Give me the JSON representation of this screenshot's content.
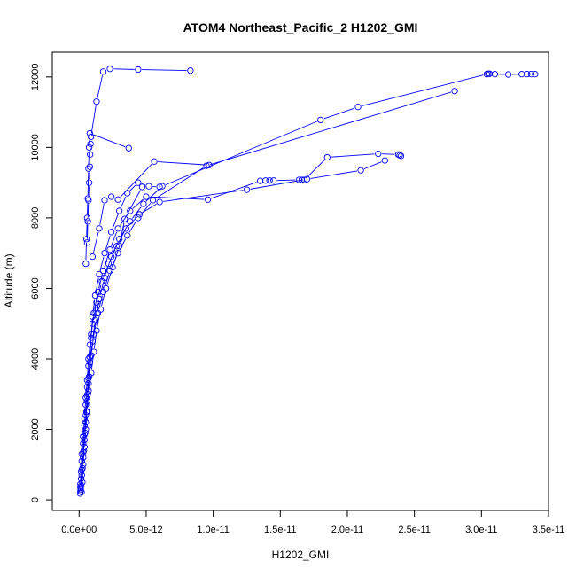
{
  "chart_data": {
    "type": "line",
    "title": "ATOM4 Northeast_Pacific_2 H1202_GMI",
    "xlabel": "H1202_GMI",
    "ylabel": "Altitude (m)",
    "xlim": [
      -2e-12,
      3.5e-11
    ],
    "ylim": [
      -300,
      12700
    ],
    "x_ticks": [
      0,
      5e-12,
      1e-11,
      1.5e-11,
      2e-11,
      2.5e-11,
      3e-11,
      3.5e-11
    ],
    "x_tick_labels": [
      "0.0e+00",
      "5.0e-12",
      "1.0e-11",
      "1.5e-11",
      "2.0e-11",
      "2.5e-11",
      "3.0e-11",
      "3.5e-11"
    ],
    "y_ticks": [
      0,
      2000,
      4000,
      6000,
      8000,
      10000,
      12000
    ],
    "y_tick_labels": [
      "0",
      "2000",
      "4000",
      "6000",
      "8000",
      "10000",
      "12000"
    ],
    "grid": false,
    "marker": "open-circle",
    "color": "#0000ff",
    "series": [
      {
        "points": [
          [
            8e-14,
            180
          ],
          [
            1e-13,
            450
          ],
          [
            1.5e-13,
            800
          ],
          [
            2e-13,
            1300
          ],
          [
            3e-13,
            1800
          ],
          [
            4e-13,
            2300
          ],
          [
            5e-13,
            2900
          ],
          [
            6e-13,
            3400
          ],
          [
            7e-13,
            4000
          ],
          [
            9e-13,
            4700
          ],
          [
            1.1e-12,
            5300
          ],
          [
            1.4e-12,
            5900
          ],
          [
            1.8e-12,
            6500
          ],
          [
            2.3e-12,
            7100
          ],
          [
            2.9e-12,
            7700
          ],
          [
            3.8e-12,
            8200
          ],
          [
            5e-12,
            8600
          ],
          [
            9.6e-12,
            8520
          ],
          [
            1.35e-11,
            9050
          ],
          [
            1.39e-11,
            9060
          ],
          [
            1.42e-11,
            9060
          ],
          [
            1.45e-11,
            9060
          ],
          [
            1.64e-11,
            9080
          ],
          [
            1.66e-11,
            9080
          ],
          [
            1.68e-11,
            9080
          ],
          [
            1.85e-11,
            9720
          ],
          [
            2.23e-11,
            9820
          ],
          [
            2.38e-11,
            9800
          ],
          [
            2.39e-11,
            9780
          ],
          [
            2.4e-11,
            9760
          ]
        ]
      },
      {
        "points": [
          [
            1e-13,
            250
          ],
          [
            1.5e-13,
            600
          ],
          [
            2e-13,
            1100
          ],
          [
            3e-13,
            1600
          ],
          [
            4e-13,
            2100
          ],
          [
            5e-13,
            2700
          ],
          [
            6e-13,
            3200
          ],
          [
            7e-13,
            3800
          ],
          [
            8e-13,
            4400
          ],
          [
            1e-12,
            5000
          ],
          [
            1.3e-12,
            5600
          ],
          [
            1.7e-12,
            6200
          ],
          [
            2.2e-12,
            6700
          ],
          [
            2.8e-12,
            7200
          ],
          [
            3.5e-12,
            7700
          ],
          [
            4.5e-12,
            8100
          ],
          [
            6e-12,
            8450
          ],
          [
            1.25e-11,
            8800
          ],
          [
            1.7e-11,
            9100
          ],
          [
            2.1e-11,
            9350
          ],
          [
            2.28e-11,
            9630
          ]
        ]
      },
      {
        "points": [
          [
            1.2e-13,
            300
          ],
          [
            2e-13,
            700
          ],
          [
            3e-13,
            1200
          ],
          [
            4e-13,
            1700
          ],
          [
            5e-13,
            2200
          ],
          [
            6e-13,
            2800
          ],
          [
            7e-13,
            3300
          ],
          [
            8e-13,
            3900
          ],
          [
            1e-12,
            4500
          ],
          [
            1.2e-12,
            5100
          ],
          [
            1.5e-12,
            5700
          ],
          [
            1.9e-12,
            6300
          ],
          [
            2.4e-12,
            6900
          ],
          [
            3e-12,
            7400
          ],
          [
            3.8e-12,
            7900
          ],
          [
            4.8e-12,
            8400
          ],
          [
            6.2e-12,
            8900
          ],
          [
            1.8e-11,
            10780
          ],
          [
            2.08e-11,
            11150
          ],
          [
            3.04e-11,
            12080
          ],
          [
            3.05e-11,
            12090
          ],
          [
            3.06e-11,
            12090
          ],
          [
            3.1e-11,
            12080
          ],
          [
            3.2e-11,
            12070
          ],
          [
            3.3e-11,
            12080
          ],
          [
            3.34e-11,
            12080
          ],
          [
            3.37e-11,
            12080
          ],
          [
            3.4e-11,
            12080
          ]
        ]
      },
      {
        "points": [
          [
            1.5e-13,
            400
          ],
          [
            2.5e-13,
            900
          ],
          [
            3.5e-13,
            1400
          ],
          [
            4.5e-13,
            1900
          ],
          [
            5.5e-13,
            2500
          ],
          [
            6.5e-13,
            3000
          ],
          [
            7.5e-13,
            3500
          ],
          [
            9e-13,
            4100
          ],
          [
            1.1e-12,
            4700
          ],
          [
            1.4e-12,
            5300
          ],
          [
            1.8e-12,
            5900
          ],
          [
            2.3e-12,
            6500
          ],
          [
            2.9e-12,
            7000
          ],
          [
            3.6e-12,
            7500
          ],
          [
            4.4e-12,
            8000
          ],
          [
            5.5e-12,
            8500
          ],
          [
            9.5e-12,
            9480
          ],
          [
            2.8e-11,
            11600
          ]
        ]
      },
      {
        "points": [
          [
            1e-13,
            350
          ],
          [
            2e-13,
            850
          ],
          [
            3e-13,
            1350
          ],
          [
            4e-13,
            1850
          ],
          [
            5e-13,
            2400
          ],
          [
            6e-13,
            2950
          ],
          [
            7e-13,
            3450
          ],
          [
            8e-13,
            4050
          ],
          [
            9e-13,
            4600
          ],
          [
            1e-12,
            5200
          ],
          [
            1.2e-12,
            5800
          ],
          [
            1.5e-12,
            6400
          ],
          [
            1.9e-12,
            7000
          ],
          [
            2.4e-12,
            7600
          ],
          [
            3e-12,
            8200
          ],
          [
            3.6e-12,
            8700
          ],
          [
            4.4e-12,
            9000
          ],
          [
            5.2e-12,
            8900
          ],
          [
            6e-12,
            8880
          ]
        ]
      },
      {
        "points": [
          [
            6e-13,
            7300
          ],
          [
            6.5e-13,
            7900
          ],
          [
            7e-13,
            8500
          ],
          [
            7.5e-13,
            9000
          ],
          [
            8e-13,
            9450
          ],
          [
            8.2e-13,
            9800
          ],
          [
            8.5e-13,
            10100
          ],
          [
            8.8e-13,
            10300
          ],
          [
            1.3e-12,
            11300
          ],
          [
            1.8e-12,
            12150
          ],
          [
            2.3e-12,
            12230
          ],
          [
            4.4e-12,
            12210
          ],
          [
            8.3e-12,
            12180
          ]
        ]
      },
      {
        "points": [
          [
            5e-13,
            6700
          ],
          [
            5.5e-13,
            7400
          ],
          [
            6e-13,
            8000
          ],
          [
            6.5e-13,
            8550
          ],
          [
            7e-13,
            9400
          ],
          [
            7.5e-13,
            10000
          ],
          [
            8e-13,
            10400
          ],
          [
            3.7e-12,
            9980
          ]
        ]
      },
      {
        "points": [
          [
            1e-12,
            6900
          ],
          [
            1.5e-12,
            7700
          ],
          [
            1.9e-12,
            8500
          ],
          [
            2.4e-12,
            8600
          ],
          [
            2.9e-12,
            8520
          ],
          [
            5.6e-12,
            9600
          ],
          [
            9.7e-12,
            9500
          ]
        ]
      },
      {
        "points": [
          [
            1.8e-13,
            220
          ],
          [
            2.4e-13,
            500
          ],
          [
            3e-13,
            1000
          ],
          [
            4e-13,
            1500
          ],
          [
            5e-13,
            2000
          ],
          [
            6e-13,
            2500
          ],
          [
            7e-13,
            3100
          ],
          [
            9e-13,
            3600
          ],
          [
            1.1e-12,
            4200
          ],
          [
            1.3e-12,
            4800
          ],
          [
            1.6e-12,
            5400
          ],
          [
            2e-12,
            6000
          ],
          [
            2.5e-12,
            6600
          ],
          [
            3e-12,
            7200
          ],
          [
            3.4e-12,
            7970
          ],
          [
            4.7e-12,
            8880
          ]
        ]
      }
    ]
  }
}
